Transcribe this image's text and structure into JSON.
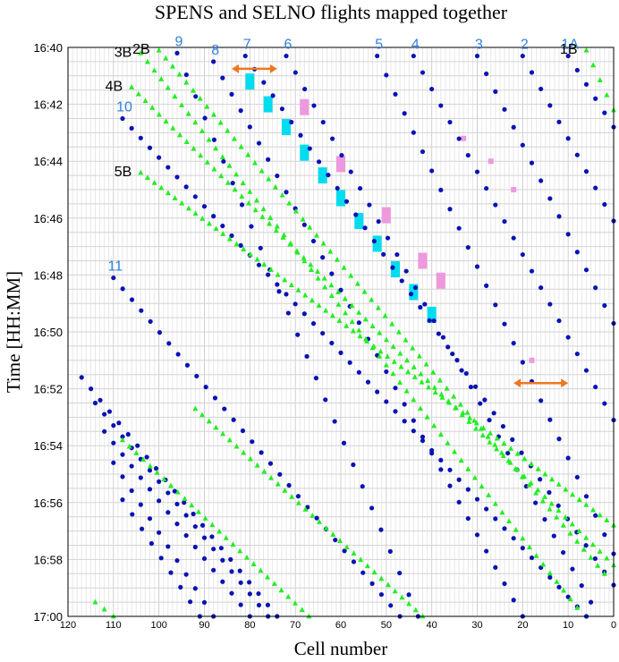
{
  "chart_data": {
    "type": "scatter",
    "title": "SPENS and SELNO flights mapped together",
    "xlabel": "Cell number",
    "ylabel": "Time [HH:MM]",
    "x_reversed": true,
    "xlim": [
      120,
      0
    ],
    "ylim_minutes": [
      0,
      20
    ],
    "x_ticks": [
      "120",
      "110",
      "100",
      "90",
      "80",
      "70",
      "60",
      "50",
      "40",
      "30",
      "20",
      "10",
      "0"
    ],
    "y_ticks": [
      "16:40",
      "16:42",
      "16:44",
      "16:46",
      "16:48",
      "16:50",
      "16:52",
      "16:54",
      "16:56",
      "16:58",
      "17:00"
    ],
    "grid": true,
    "colors": {
      "spens": "#0a12b4",
      "selno": "#22ee22",
      "cyan_highlight": "#00ddee",
      "pink_highlight": "#ee99dd",
      "arrow": "#ee7722",
      "blue_label": "#2f7fe0",
      "black_label": "#000000"
    },
    "series": [
      {
        "marker": "circle",
        "flights": [
          {
            "label": "1A",
            "start": [
              10,
              0.3
            ],
            "end": [
              0,
              2.8
            ]
          },
          {
            "label": "2",
            "start": [
              20,
              0.3
            ],
            "end": [
              0,
              6.1
            ]
          },
          {
            "label": "3",
            "start": [
              30,
              0.3
            ],
            "end": [
              0,
              9.7
            ]
          },
          {
            "label": "4",
            "start": [
              44,
              0.3
            ],
            "end": [
              0,
              13.1
            ]
          },
          {
            "label": "5",
            "start": [
              52,
              0.3
            ],
            "end": [
              0,
              17.8
            ]
          },
          {
            "label": "6",
            "start": [
              72,
              0.3
            ],
            "end": [
              5,
              19.5
            ]
          },
          {
            "label": "7",
            "start": [
              81,
              0.3
            ],
            "end": [
              0,
              18.9
            ]
          },
          {
            "label": "8",
            "start": [
              88,
              0.5
            ],
            "end": [
              20,
              20
            ]
          },
          {
            "label": "9",
            "start": [
              96,
              0.2
            ],
            "end": [
              43,
              20
            ]
          },
          {
            "label": "10",
            "start": [
              108,
              2.5
            ],
            "end": [
              6,
              20
            ]
          },
          {
            "label": "11",
            "start": [
              110,
              8.1
            ],
            "end": [
              47,
              20
            ]
          },
          {
            "label": "",
            "start": [
              117,
              11.6
            ],
            "end": [
              74,
              20
            ]
          },
          {
            "label": "",
            "start": [
              114,
              12.5
            ],
            "end": [
              76,
              20
            ]
          },
          {
            "label": "",
            "start": [
              112,
              13.5
            ],
            "end": [
              80,
              20
            ]
          },
          {
            "label": "",
            "start": [
              110,
              14.6
            ],
            "end": [
              88,
              20
            ]
          },
          {
            "label": "",
            "start": [
              108,
              15.9
            ],
            "end": [
              91,
              20
            ]
          }
        ]
      },
      {
        "marker": "triangle",
        "flights": [
          {
            "label": "1B",
            "start": [
              6,
              0.1
            ],
            "end": [
              0,
              2.2
            ]
          },
          {
            "label": "2B",
            "start": [
              100,
              0.1
            ],
            "end": [
              2,
              18.5
            ]
          },
          {
            "label": "3B",
            "start": [
              104,
              0.2
            ],
            "end": [
              8,
              19.7
            ]
          },
          {
            "label": "4B",
            "start": [
              106,
              1.4
            ],
            "end": [
              0,
              18.2
            ]
          },
          {
            "label": "5B",
            "start": [
              104,
              4.4
            ],
            "end": [
              0,
              16.8
            ]
          },
          {
            "label": "",
            "start": [
              92,
              12.7
            ],
            "end": [
              42,
              20
            ]
          },
          {
            "label": "",
            "start": [
              108,
              13.8
            ],
            "end": [
              67,
              20
            ]
          },
          {
            "label": "",
            "start": [
              114,
              19.5
            ],
            "end": [
              110,
              20
            ]
          }
        ]
      }
    ],
    "annotations": {
      "arrows": [
        {
          "from": [
            84,
            0.75
          ],
          "to": [
            74,
            0.75
          ]
        },
        {
          "from": [
            22,
            11.8
          ],
          "to": [
            10,
            11.8
          ]
        }
      ],
      "cyan_boxes": [
        [
          80,
          1.2
        ],
        [
          76,
          2.0
        ],
        [
          72,
          2.8
        ],
        [
          68,
          3.7
        ],
        [
          64,
          4.5
        ],
        [
          60,
          5.3
        ],
        [
          56,
          6.1
        ],
        [
          52,
          6.9
        ],
        [
          48,
          7.8
        ],
        [
          44,
          8.6
        ],
        [
          40,
          9.4
        ]
      ],
      "pink_boxes": [
        [
          68,
          2.1
        ],
        [
          60,
          4.1
        ],
        [
          50,
          5.9
        ],
        [
          42,
          7.5
        ],
        [
          38,
          8.2
        ]
      ],
      "pink_marks": [
        [
          33,
          3.2
        ],
        [
          27,
          4.0
        ],
        [
          22,
          5.0
        ],
        [
          18,
          11.0
        ]
      ]
    }
  }
}
